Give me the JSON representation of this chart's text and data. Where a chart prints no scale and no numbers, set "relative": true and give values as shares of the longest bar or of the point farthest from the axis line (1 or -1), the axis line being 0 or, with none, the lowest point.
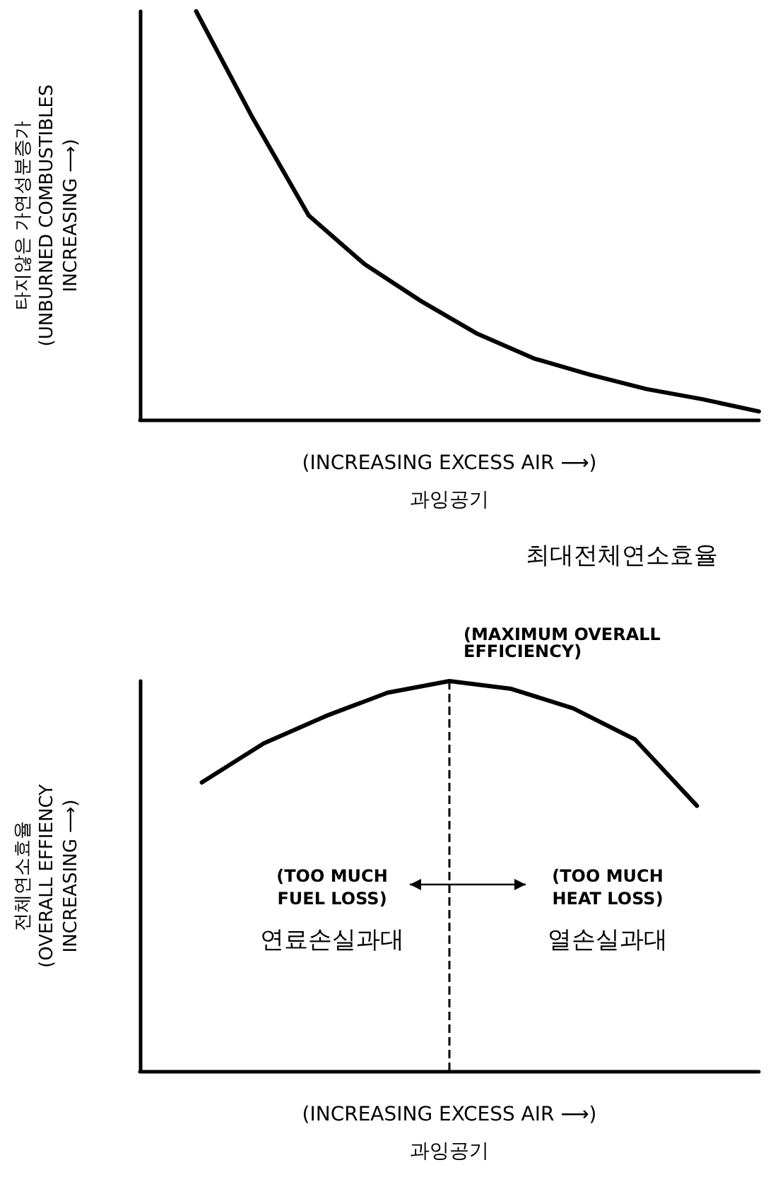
{
  "chart_data": [
    {
      "type": "line",
      "relative": true,
      "categories": [
        null,
        null,
        null,
        null,
        null,
        null,
        null,
        null,
        null,
        null,
        null,
        null
      ],
      "series": [
        {
          "color": "#000000",
          "values": [
            null,
            1,
            0.74,
            0.5,
            0.38,
            0.29,
            0.21,
            0.15,
            0.11,
            0.075,
            0.05,
            0.02
          ]
        }
      ],
      "xlabel": "(INCREASING EXCESS AIR ⟶)\n과잉공기",
      "ylabel": "타지않은 가연성분증가\n(UNBURNED COMBUSTIBLES\nINCREASING ⟶)",
      "marker": "none",
      "line_style": "solid"
    },
    {
      "type": "line",
      "relative": true,
      "categories": [
        null,
        null,
        null,
        null,
        null,
        null,
        null,
        null,
        null,
        null,
        null
      ],
      "series": [
        {
          "color": "#000000",
          "values": [
            null,
            0.74,
            0.84,
            0.91,
            0.97,
            1,
            0.98,
            0.93,
            0.85,
            0.68,
            null
          ]
        }
      ],
      "xlabel": "(INCREASING EXCESS AIR ⟶)\n과잉공기",
      "ylabel": "전체연소효율\n(OVERALL EFFIENCY\nINCREASING ⟶)",
      "marker": "none",
      "line_style": "solid",
      "ref_lines": [
        {
          "axis": "x",
          "label": "(MAXIMUM OVERALL\nEFFICIENCY)",
          "line_style": "dashed"
        }
      ],
      "annotations": [
        "최대전체연소효율",
        "(TOO MUCH\nFUEL LOSS)",
        "(TOO MUCH\nHEAT LOSS)",
        "연료손실과대",
        "열손실과대"
      ]
    }
  ]
}
